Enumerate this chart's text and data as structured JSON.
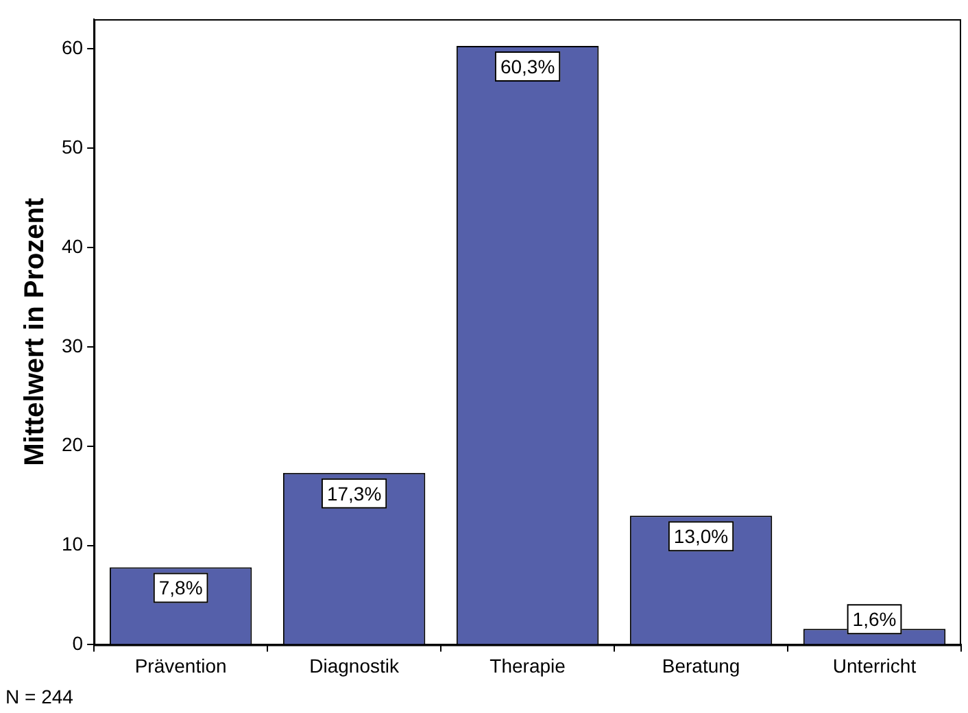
{
  "chart_data": {
    "type": "bar",
    "ylabel": "Mittelwert in Prozent",
    "categories": [
      "Prävention",
      "Diagnostik",
      "Therapie",
      "Beratung",
      "Unterricht"
    ],
    "values": [
      7.8,
      17.3,
      60.3,
      13.0,
      1.6
    ],
    "value_labels": [
      "7,8%",
      "17,3%",
      "60,3%",
      "13,0%",
      "1,6%"
    ],
    "color": "#5560aa",
    "ylim": [
      0,
      63
    ],
    "yticks": [
      0,
      10,
      20,
      30,
      40,
      50,
      60
    ],
    "grid": false,
    "annotations": [
      "N = 244"
    ]
  }
}
